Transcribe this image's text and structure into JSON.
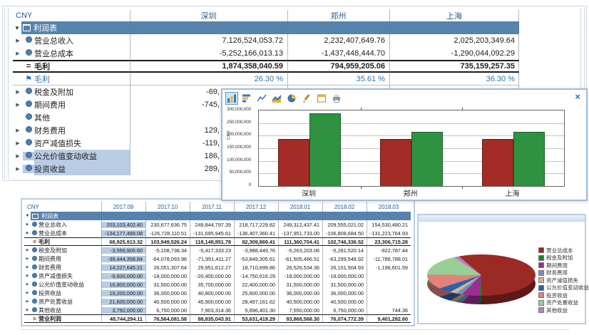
{
  "top_table": {
    "currency_label": "CNY",
    "columns": [
      "深圳",
      "郑州",
      "上海"
    ],
    "group_label": "利润表",
    "rows": [
      {
        "icon": "expand-circle",
        "label": "营业总收入",
        "values": [
          "7,126,524,053.72",
          "2,232,407,649.76",
          "2,025,203,349.64"
        ]
      },
      {
        "icon": "expand-circle",
        "label": "营业总成本",
        "values": [
          "-5,252,166,013.13",
          "-1,437,448,444.70",
          "-1,290,044,092.29"
        ]
      },
      {
        "icon": "equals",
        "label": "毛利",
        "style": "bold",
        "values": [
          "1,874,358,040.59",
          "794,959,205.06",
          "735,159,257.35"
        ]
      },
      {
        "icon": "flag",
        "label": "毛利",
        "style": "percent",
        "values": [
          "26.30 %",
          "35.61 %",
          "36.30 %"
        ]
      },
      {
        "icon": "expand-circle",
        "label": "税金及附加",
        "clipped": true,
        "values": [
          "-69,",
          "",
          ""
        ]
      },
      {
        "icon": "expand-circle",
        "label": "期间费用",
        "clipped": true,
        "values": [
          "-745,",
          "",
          ""
        ]
      },
      {
        "icon": "circle",
        "label": "其他",
        "values": [
          "",
          "",
          ""
        ]
      },
      {
        "icon": "expand-circle",
        "label": "财务费用",
        "clipped": true,
        "values": [
          "129,",
          "",
          ""
        ]
      },
      {
        "icon": "expand-circle",
        "label": "资产减值损失",
        "clipped": true,
        "values": [
          "-119,",
          "",
          ""
        ]
      },
      {
        "icon": "expand-circle",
        "label": "公允价值变动收益",
        "selected": true,
        "clipped": true,
        "values": [
          "186,",
          "",
          ""
        ]
      },
      {
        "icon": "expand-circle",
        "label": "投资收益",
        "selected": true,
        "clipped": true,
        "values": [
          "289,",
          "",
          ""
        ]
      }
    ]
  },
  "bottom_table": {
    "currency_label": "CNY",
    "columns": [
      "2017.09",
      "2017.10",
      "2017.11",
      "2017.12",
      "2018.01",
      "2018.02",
      "2018.03"
    ],
    "group_label": "利润表",
    "selected_column_index": 0,
    "rows": [
      {
        "icon": "expand-circle",
        "label": "营业总收入",
        "values": [
          "203,103,402.40",
          "230,677,636.75",
          "249,844,797.39",
          "218,717,229.82",
          "249,312,437.41",
          "209,555,021.02",
          "154,530,480.21"
        ]
      },
      {
        "icon": "expand-circle",
        "label": "营业总成本",
        "values": [
          "-134,177,489.08",
          "-126,728,110.51",
          "-131,695,945.61",
          "-136,407,360.41",
          "-137,951,733.00",
          "-106,808,684.50",
          "-131,223,764.93"
        ]
      },
      {
        "icon": "equals",
        "label": "毛利",
        "style": "bold",
        "values": [
          "68,925,913.32",
          "103,949,526.24",
          "118,148,851.78",
          "82,309,869.41",
          "111,360,704.41",
          "102,746,336.52",
          "23,306,715.28"
        ]
      },
      {
        "icon": "expand-circle",
        "label": "税金及附加",
        "values": [
          "-3,556,905.60",
          "-5,108,738.34",
          "-5,417,333.23",
          "-3,988,449.76",
          "-5,263,203.06",
          "-5,281,520.14",
          "-922,787.44"
        ]
      },
      {
        "icon": "expand-circle",
        "label": "期间费用",
        "values": [
          "-39,444,358.84",
          "-64,078,093.96",
          "-71,951,411.27",
          "-53,849,305.61",
          "-61,505,466.51",
          "-63,299,548.92",
          "-11,786,788.01"
        ]
      },
      {
        "icon": "expand-circle",
        "label": "财务费用",
        "values": [
          "14,227,645.21",
          "26,051,307.64",
          "29,951,612.27",
          "18,710,699.86",
          "26,526,534.36",
          "26,151,504.93",
          "-1,196,601.59"
        ]
      },
      {
        "icon": "expand-circle",
        "label": "资产减值损失",
        "values": [
          "-9,600,000.00",
          "-18,000,000.00",
          "-20,400,000.00",
          "-14,750,616.29",
          "-18,000,000.00",
          "-18,000,000.00",
          ""
        ]
      },
      {
        "icon": "expand-circle",
        "label": "公允价值变动收益",
        "values": [
          "16,800,000.00",
          "31,500,000.00",
          "35,700,000.00",
          "22,400,000.00",
          "31,500,000.00",
          "31,500,000.00",
          ""
        ]
      },
      {
        "icon": "expand-circle",
        "label": "投资收益",
        "values": [
          "19,200,000.00",
          "36,000,000.00",
          "40,800,000.00",
          "25,600,000.00",
          "36,000,000.00",
          "36,000,000.00",
          ""
        ]
      },
      {
        "icon": "expand-circle",
        "label": "资产处置收益",
        "values": [
          "21,600,000.00",
          "40,500,000.00",
          "45,900,000.00",
          "28,497,161.62",
          "40,500,000.00",
          "40,500,000.00",
          ""
        ]
      },
      {
        "icon": "expand-circle",
        "label": "其他收益",
        "values": [
          "3,792,000.00",
          "6,750,000.00",
          "7,903,314.36",
          "5,696,401.30",
          "7,550,000.00",
          "6,750,000.00",
          "744.36"
        ]
      },
      {
        "icon": "equals",
        "label": "营业利润",
        "style": "bold",
        "values": [
          "48,744,294.11",
          "76,564,081.58",
          "88,835,043.91",
          "53,631,419.29",
          "83,868,568.30",
          "76,074,772.39",
          "9,401,282.60"
        ]
      }
    ]
  },
  "chart_popup": {
    "close_glyph": "×",
    "toolbar_icons": [
      {
        "name": "column-chart-icon",
        "active": true
      },
      {
        "name": "bar-chart-icon",
        "active": false
      },
      {
        "name": "line-chart-icon",
        "active": false
      },
      {
        "name": "area-chart-icon",
        "active": false
      },
      {
        "name": "pie-chart-icon",
        "active": false
      },
      {
        "name": "edit-icon",
        "active": false
      },
      {
        "name": "window-icon",
        "active": false
      },
      {
        "name": "print-icon",
        "active": false
      }
    ]
  },
  "colors": {
    "group_header_bg": "#5683ae",
    "selection_bg": "#b8cce4",
    "percent_text": "#2e74b5",
    "bar_red": "#a32c26",
    "bar_green": "#2e9241"
  },
  "chart_data": [
    {
      "type": "bar",
      "title": "",
      "ylabel": "CNY",
      "categories": [
        "深圳",
        "郑州",
        "上海"
      ],
      "series": [
        {
          "name": "series-red",
          "color": "#a32c26",
          "values": [
            186000000,
            188000000,
            186000000
          ]
        },
        {
          "name": "series-green",
          "color": "#2e9241",
          "values": [
            289000000,
            214000000,
            215000000
          ]
        }
      ],
      "ylim": [
        0,
        300000000
      ],
      "y_ticks": [
        "300,000,000",
        "250,000,000",
        "200,000,000",
        "150,000,000",
        "100,000,000",
        "50,000,000",
        "0"
      ],
      "grid": true,
      "legend": false
    },
    {
      "type": "pie",
      "effect": "3d",
      "legend_position": "right",
      "labels": [
        "营业总成本",
        "税金及附加",
        "期间费用",
        "财务费用",
        "资产减值损失",
        "公允价值变动收益",
        "投资收益",
        "资产处置收益",
        "其他收益"
      ],
      "values": [
        64,
        1.5,
        11,
        2.5,
        2,
        3,
        5,
        9,
        2
      ],
      "colors": [
        "#9b2a24",
        "#237d32",
        "#9c2e92",
        "#7191bc",
        "#d9b48c",
        "#2b62b0",
        "#e2837b",
        "#99cf94",
        "#b97fc6"
      ]
    }
  ]
}
